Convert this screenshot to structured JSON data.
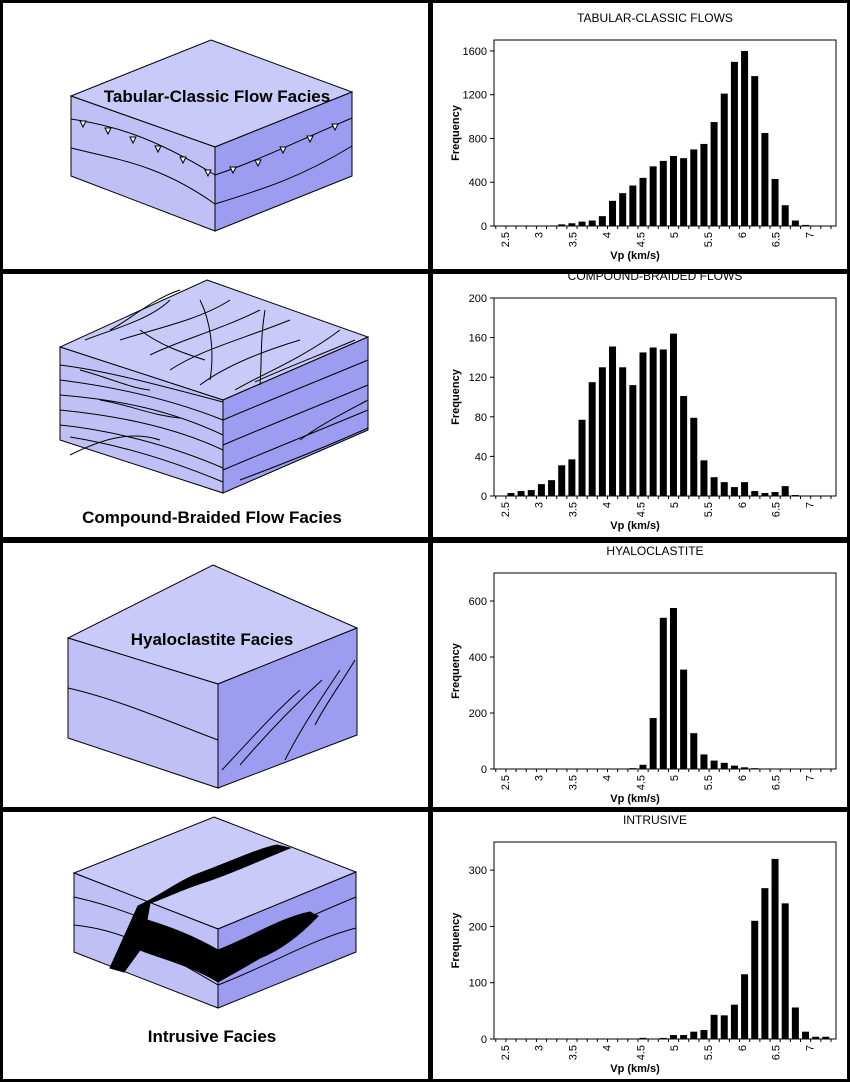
{
  "facies_labels": [
    "Tabular-Classic Flow Facies",
    "Compound-Braided Flow Facies",
    "Hyaloclastite Facies",
    "Intrusive Facies"
  ],
  "colors": {
    "top_face": "#cacaf8",
    "left_face": "#c0c0f6",
    "right_face": "#9c9cf0",
    "dike": "#000000"
  },
  "chart_data": [
    {
      "type": "bar",
      "title": "TABULAR-CLASSIC FLOWS",
      "xlabel": "Vp (km/s)",
      "ylabel": "Frequency",
      "ylim": [
        0,
        1700
      ],
      "yticks": [
        0,
        400,
        800,
        1200,
        1600
      ],
      "ytick_labels": [
        "0",
        "400",
        "800",
        "1200",
        "1600"
      ],
      "xlim": [
        2.34,
        7.39
      ],
      "xticks": [
        2.5,
        3,
        3.5,
        4,
        4.5,
        5,
        5.5,
        6,
        6.5,
        7
      ],
      "xtick_labels": [
        "2.5",
        "3",
        "3.5",
        "4",
        "4.5",
        "5",
        "5.5",
        "6",
        "6.5",
        "7"
      ],
      "bin_first_center": 2.44,
      "bin_width": 0.15,
      "values": [
        0,
        0,
        0,
        0,
        0,
        5,
        15,
        25,
        40,
        50,
        90,
        230,
        300,
        370,
        440,
        545,
        595,
        640,
        620,
        700,
        750,
        950,
        1210,
        1500,
        1600,
        1370,
        850,
        430,
        190,
        50,
        10,
        0,
        0,
        0
      ]
    },
    {
      "type": "bar",
      "title": "COMPOUND-BRAIDED FLOWS",
      "xlabel": "Vp (km/s)",
      "ylabel": "Frequency",
      "ylim": [
        0,
        200
      ],
      "yticks": [
        0,
        40,
        80,
        120,
        160,
        200
      ],
      "ytick_labels": [
        "0",
        "40",
        "80",
        "120",
        "160",
        "200"
      ],
      "xlim": [
        2.34,
        7.39
      ],
      "xticks": [
        2.5,
        3,
        3.5,
        4,
        4.5,
        5,
        5.5,
        6,
        6.5,
        7
      ],
      "xtick_labels": [
        "2.5",
        "3",
        "3.5",
        "4",
        "4.5",
        "5",
        "5.5",
        "6",
        "6.5",
        "7"
      ],
      "bin_first_center": 2.44,
      "bin_width": 0.15,
      "values": [
        0,
        3,
        5,
        6,
        12,
        16,
        31,
        37,
        77,
        115,
        130,
        151,
        130,
        112,
        145,
        150,
        148,
        164,
        101,
        79,
        36,
        19,
        14,
        9,
        14,
        5,
        3,
        4,
        10,
        1,
        0,
        0,
        0,
        0
      ]
    },
    {
      "type": "bar",
      "title": "HYALOCLASTITE",
      "xlabel": "Vp (km/s)",
      "ylabel": "Frequency",
      "ylim": [
        0,
        700
      ],
      "yticks": [
        0,
        200,
        400,
        600
      ],
      "ytick_labels": [
        "0",
        "200",
        "400",
        "600"
      ],
      "xlim": [
        2.34,
        7.39
      ],
      "xticks": [
        2.5,
        3,
        3.5,
        4,
        4.5,
        5,
        5.5,
        6,
        6.5,
        7
      ],
      "xtick_labels": [
        "2.5",
        "3",
        "3.5",
        "4",
        "4.5",
        "5",
        "5.5",
        "6",
        "6.5",
        "7"
      ],
      "bin_first_center": 2.44,
      "bin_width": 0.15,
      "values": [
        0,
        0,
        0,
        0,
        0,
        0,
        0,
        0,
        0,
        0,
        0,
        0,
        0,
        3,
        15,
        182,
        540,
        575,
        355,
        128,
        52,
        30,
        22,
        12,
        6,
        3,
        0,
        0,
        0,
        0,
        0,
        0,
        0,
        0
      ]
    },
    {
      "type": "bar",
      "title": "INTRUSIVE",
      "xlabel": "Vp (km/s)",
      "ylabel": "Frequency",
      "ylim": [
        0,
        350
      ],
      "yticks": [
        0,
        100,
        200,
        300
      ],
      "ytick_labels": [
        "0",
        "100",
        "200",
        "300"
      ],
      "xlim": [
        2.34,
        7.39
      ],
      "xticks": [
        2.5,
        3,
        3.5,
        4,
        4.5,
        5,
        5.5,
        6,
        6.5,
        7
      ],
      "xtick_labels": [
        "2.5",
        "3",
        "3.5",
        "4",
        "4.5",
        "5",
        "5.5",
        "6",
        "6.5",
        "7"
      ],
      "bin_first_center": 2.44,
      "bin_width": 0.15,
      "values": [
        0,
        0,
        0,
        0,
        0,
        0,
        0,
        0,
        0,
        0,
        0,
        0,
        0,
        0,
        2,
        0,
        2,
        7,
        7,
        13,
        16,
        43,
        42,
        61,
        115,
        210,
        268,
        320,
        241,
        56,
        13,
        4,
        4,
        0
      ]
    }
  ]
}
